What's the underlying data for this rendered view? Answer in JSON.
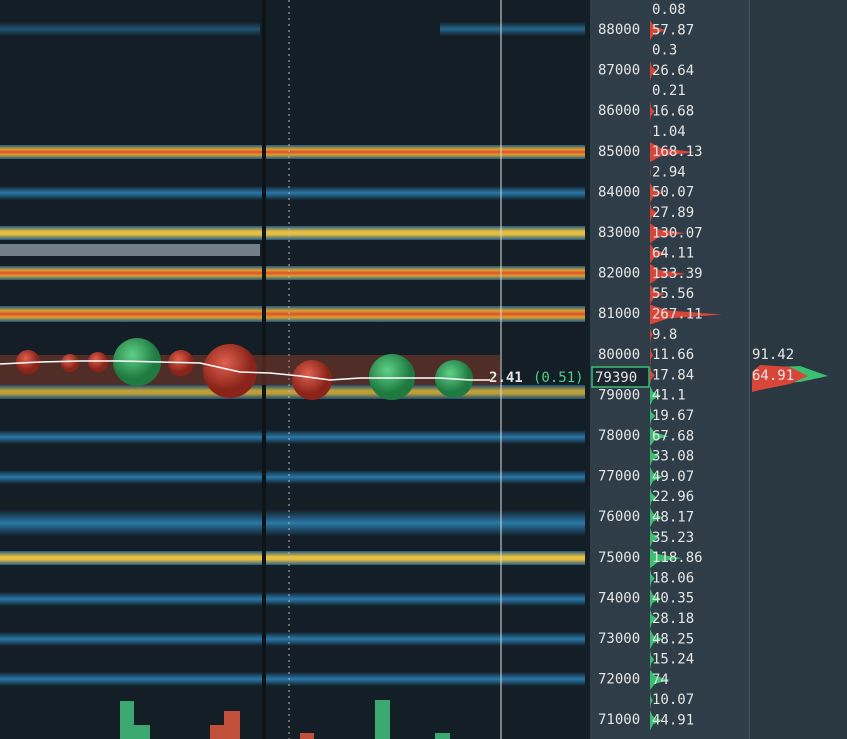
{
  "price_axis": {
    "levels": [
      88000,
      87000,
      86000,
      85000,
      84000,
      83000,
      82000,
      81000,
      80000,
      79000,
      78000,
      77000,
      76000,
      75000,
      74000,
      73000,
      72000,
      71000
    ]
  },
  "order_book": {
    "asks": [
      0.08,
      57.87,
      0.3,
      26.64,
      0.21,
      16.68,
      1.04,
      168.13,
      2.94,
      50.07,
      27.89,
      130.07,
      64.11,
      133.39,
      55.56,
      267.11,
      9.8,
      11.66,
      17.84
    ],
    "bids": [
      41.1,
      19.67,
      67.68,
      33.08,
      49.07,
      22.96,
      48.17,
      35.23,
      118.86,
      18.06,
      40.35,
      28.18,
      48.25,
      15.24,
      74,
      10.07,
      44.91
    ]
  },
  "current_price": 79390,
  "last_trade": {
    "size": 2.41,
    "delta_label": "(0.51)"
  },
  "trade_volume": {
    "buy": 91.42,
    "sell": 64.91
  }
}
